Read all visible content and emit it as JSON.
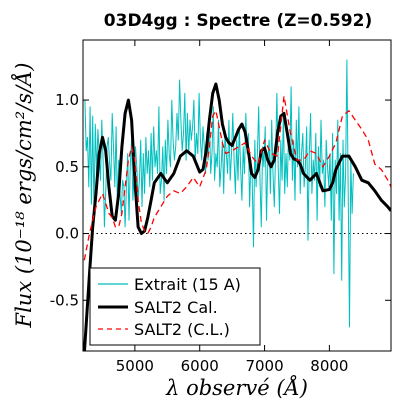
{
  "chart_data": {
    "type": "line",
    "title": "03D4gg : Spectre (Z=0.592)",
    "xlabel": "λ observé (Å)",
    "ylabel": "Flux (10⁻¹⁸ ergs/cm²/s/Å)",
    "xlim": [
      4200,
      8950
    ],
    "ylim": [
      -0.88,
      1.45
    ],
    "xticks": [
      5000,
      6000,
      7000,
      8000
    ],
    "yticks": [
      -0.5,
      0.0,
      0.5,
      1.0
    ],
    "xtick_labels": [
      "5000",
      "6000",
      "7000",
      "8000"
    ],
    "ytick_labels": [
      "-0.5",
      "0.0",
      "0.5",
      "1.0"
    ],
    "zero_line": true,
    "legend_position": "lower-left",
    "series": [
      {
        "name": "Extrait (15 A)",
        "color": "#00bfbf",
        "style": "solid",
        "width": 1,
        "x_start": 4230,
        "x_step": 20,
        "values": [
          1.0,
          0.62,
          0.72,
          0.35,
          0.95,
          0.22,
          0.88,
          0.15,
          0.82,
          0.45,
          0.78,
          0.6,
          0.4,
          0.85,
          0.55,
          0.05,
          0.3,
          0.65,
          0.72,
          0.52,
          0.4,
          0.9,
          0.65,
          0.35,
          0.8,
          0.2,
          0.55,
          0.3,
          0.15,
          0.4,
          0.35,
          0.05,
          0.35,
          0.6,
          0.1,
          0.52,
          0.7,
          0.25,
          0.45,
          0.65,
          0.5,
          0.25,
          0.4,
          0.7,
          0.2,
          0.6,
          0.3,
          0.72,
          0.45,
          0.62,
          0.35,
          0.75,
          0.4,
          0.8,
          0.5,
          0.62,
          0.45,
          0.95,
          0.3,
          0.4,
          0.65,
          0.25,
          0.7,
          0.45,
          0.85,
          0.6,
          0.5,
          1.0,
          0.7,
          0.55,
          0.65,
          0.9,
          0.7,
          1.15,
          0.85,
          0.62,
          0.75,
          1.05,
          0.55,
          0.9,
          0.6,
          0.85,
          0.7,
          0.8,
          1.0,
          0.55,
          0.75,
          0.6,
          1.05,
          0.7,
          0.55,
          0.8,
          0.65,
          0.45,
          0.75,
          0.55,
          0.85,
          0.45,
          0.6,
          0.95,
          0.4,
          0.6,
          0.5,
          0.85,
          0.35,
          0.5,
          0.7,
          0.3,
          0.75,
          0.6,
          0.45,
          0.85,
          0.4,
          0.6,
          0.9,
          0.55,
          0.3,
          0.7,
          0.4,
          0.8,
          0.5,
          0.25,
          0.65,
          0.45,
          0.9,
          0.6,
          0.75,
          0.2,
          0.55,
          0.4,
          -0.1,
          0.7,
          0.35,
          0.6,
          0.95,
          0.4,
          0.05,
          0.65,
          0.5,
          0.8,
          0.1,
          0.55,
          0.7,
          0.3,
          0.85,
          0.45,
          0.2,
          0.6,
          1.05,
          0.5,
          0.15,
          0.7,
          0.4,
          0.9,
          0.3,
          0.6,
          0.35,
          0.75,
          0.55,
          1.1,
          0.4,
          0.7,
          0.25,
          0.85,
          0.5,
          0.95,
          0.3,
          0.6,
          0.75,
          0.35,
          0.5,
          0.8,
          -0.05,
          0.6,
          0.9,
          0.3,
          0.55,
          0.4,
          0.75,
          0.1,
          0.65,
          0.35,
          0.85,
          0.45,
          0.55,
          0.2,
          0.7,
          0.5,
          0.35,
          0.6,
          0.1,
          0.75,
          -0.3,
          0.55,
          0.3,
          0.85,
          0.1,
          0.6,
          -0.35,
          0.7,
          0.2,
          0.45,
          1.3,
          0.3,
          -0.7,
          0.55,
          0.15,
          0.45
        ]
      },
      {
        "name": "SALT2 Cal.",
        "color": "#000000",
        "style": "solid",
        "width": 3,
        "x": [
          4220,
          4300,
          4350,
          4400,
          4450,
          4500,
          4550,
          4600,
          4650,
          4700,
          4750,
          4800,
          4850,
          4900,
          4950,
          5000,
          5050,
          5100,
          5150,
          5200,
          5250,
          5300,
          5400,
          5500,
          5600,
          5700,
          5800,
          5900,
          6000,
          6050,
          6100,
          6150,
          6200,
          6250,
          6300,
          6350,
          6400,
          6450,
          6500,
          6550,
          6600,
          6650,
          6700,
          6750,
          6800,
          6850,
          6900,
          6950,
          7000,
          7050,
          7100,
          7150,
          7200,
          7250,
          7300,
          7350,
          7400,
          7450,
          7500,
          7550,
          7600,
          7700,
          7800,
          7900,
          8000,
          8050,
          8100,
          8200,
          8300,
          8400,
          8500,
          8600,
          8700,
          8800,
          8900,
          8950
        ],
        "y": [
          -0.9,
          -0.3,
          0.05,
          0.3,
          0.6,
          0.72,
          0.62,
          0.35,
          0.13,
          0.1,
          0.3,
          0.65,
          0.9,
          1.0,
          0.85,
          0.4,
          0.05,
          0.0,
          0.02,
          0.12,
          0.25,
          0.38,
          0.45,
          0.38,
          0.45,
          0.58,
          0.62,
          0.58,
          0.46,
          0.48,
          0.62,
          0.85,
          1.05,
          1.12,
          1.0,
          0.82,
          0.72,
          0.68,
          0.66,
          0.72,
          0.78,
          0.82,
          0.76,
          0.62,
          0.45,
          0.42,
          0.48,
          0.62,
          0.64,
          0.55,
          0.5,
          0.55,
          0.75,
          0.88,
          0.9,
          0.75,
          0.6,
          0.56,
          0.55,
          0.52,
          0.45,
          0.4,
          0.45,
          0.32,
          0.33,
          0.38,
          0.48,
          0.58,
          0.58,
          0.5,
          0.4,
          0.38,
          0.32,
          0.25,
          0.2,
          0.17
        ]
      },
      {
        "name": "SALT2 (C.L.)",
        "color": "#ff0000",
        "style": "dashed",
        "width": 1.3,
        "x": [
          4220,
          4300,
          4400,
          4500,
          4600,
          4650,
          4700,
          4750,
          4800,
          4850,
          4900,
          4950,
          5000,
          5050,
          5100,
          5150,
          5200,
          5250,
          5300,
          5400,
          5500,
          5600,
          5700,
          5800,
          5900,
          6000,
          6100,
          6150,
          6200,
          6250,
          6300,
          6350,
          6400,
          6500,
          6600,
          6700,
          6800,
          6850,
          6900,
          7000,
          7100,
          7200,
          7300,
          7400,
          7500,
          7600,
          7700,
          7800,
          7900,
          8000,
          8100,
          8200,
          8300,
          8400,
          8500,
          8600,
          8700,
          8800,
          8900,
          8950
        ],
        "y": [
          -0.2,
          0.0,
          0.2,
          0.3,
          0.15,
          0.12,
          0.05,
          0.05,
          0.15,
          0.35,
          0.55,
          0.65,
          0.55,
          0.25,
          0.08,
          0.02,
          0.0,
          0.05,
          0.12,
          0.2,
          0.28,
          0.32,
          0.3,
          0.35,
          0.42,
          0.35,
          0.48,
          0.65,
          0.88,
          0.92,
          0.8,
          0.68,
          0.6,
          0.62,
          0.65,
          0.68,
          0.58,
          0.55,
          0.52,
          0.7,
          0.6,
          0.58,
          1.03,
          0.75,
          0.55,
          0.55,
          0.62,
          0.6,
          0.5,
          0.58,
          0.68,
          0.88,
          0.92,
          0.85,
          0.78,
          0.7,
          0.52,
          0.48,
          0.4,
          0.35
        ]
      }
    ]
  }
}
